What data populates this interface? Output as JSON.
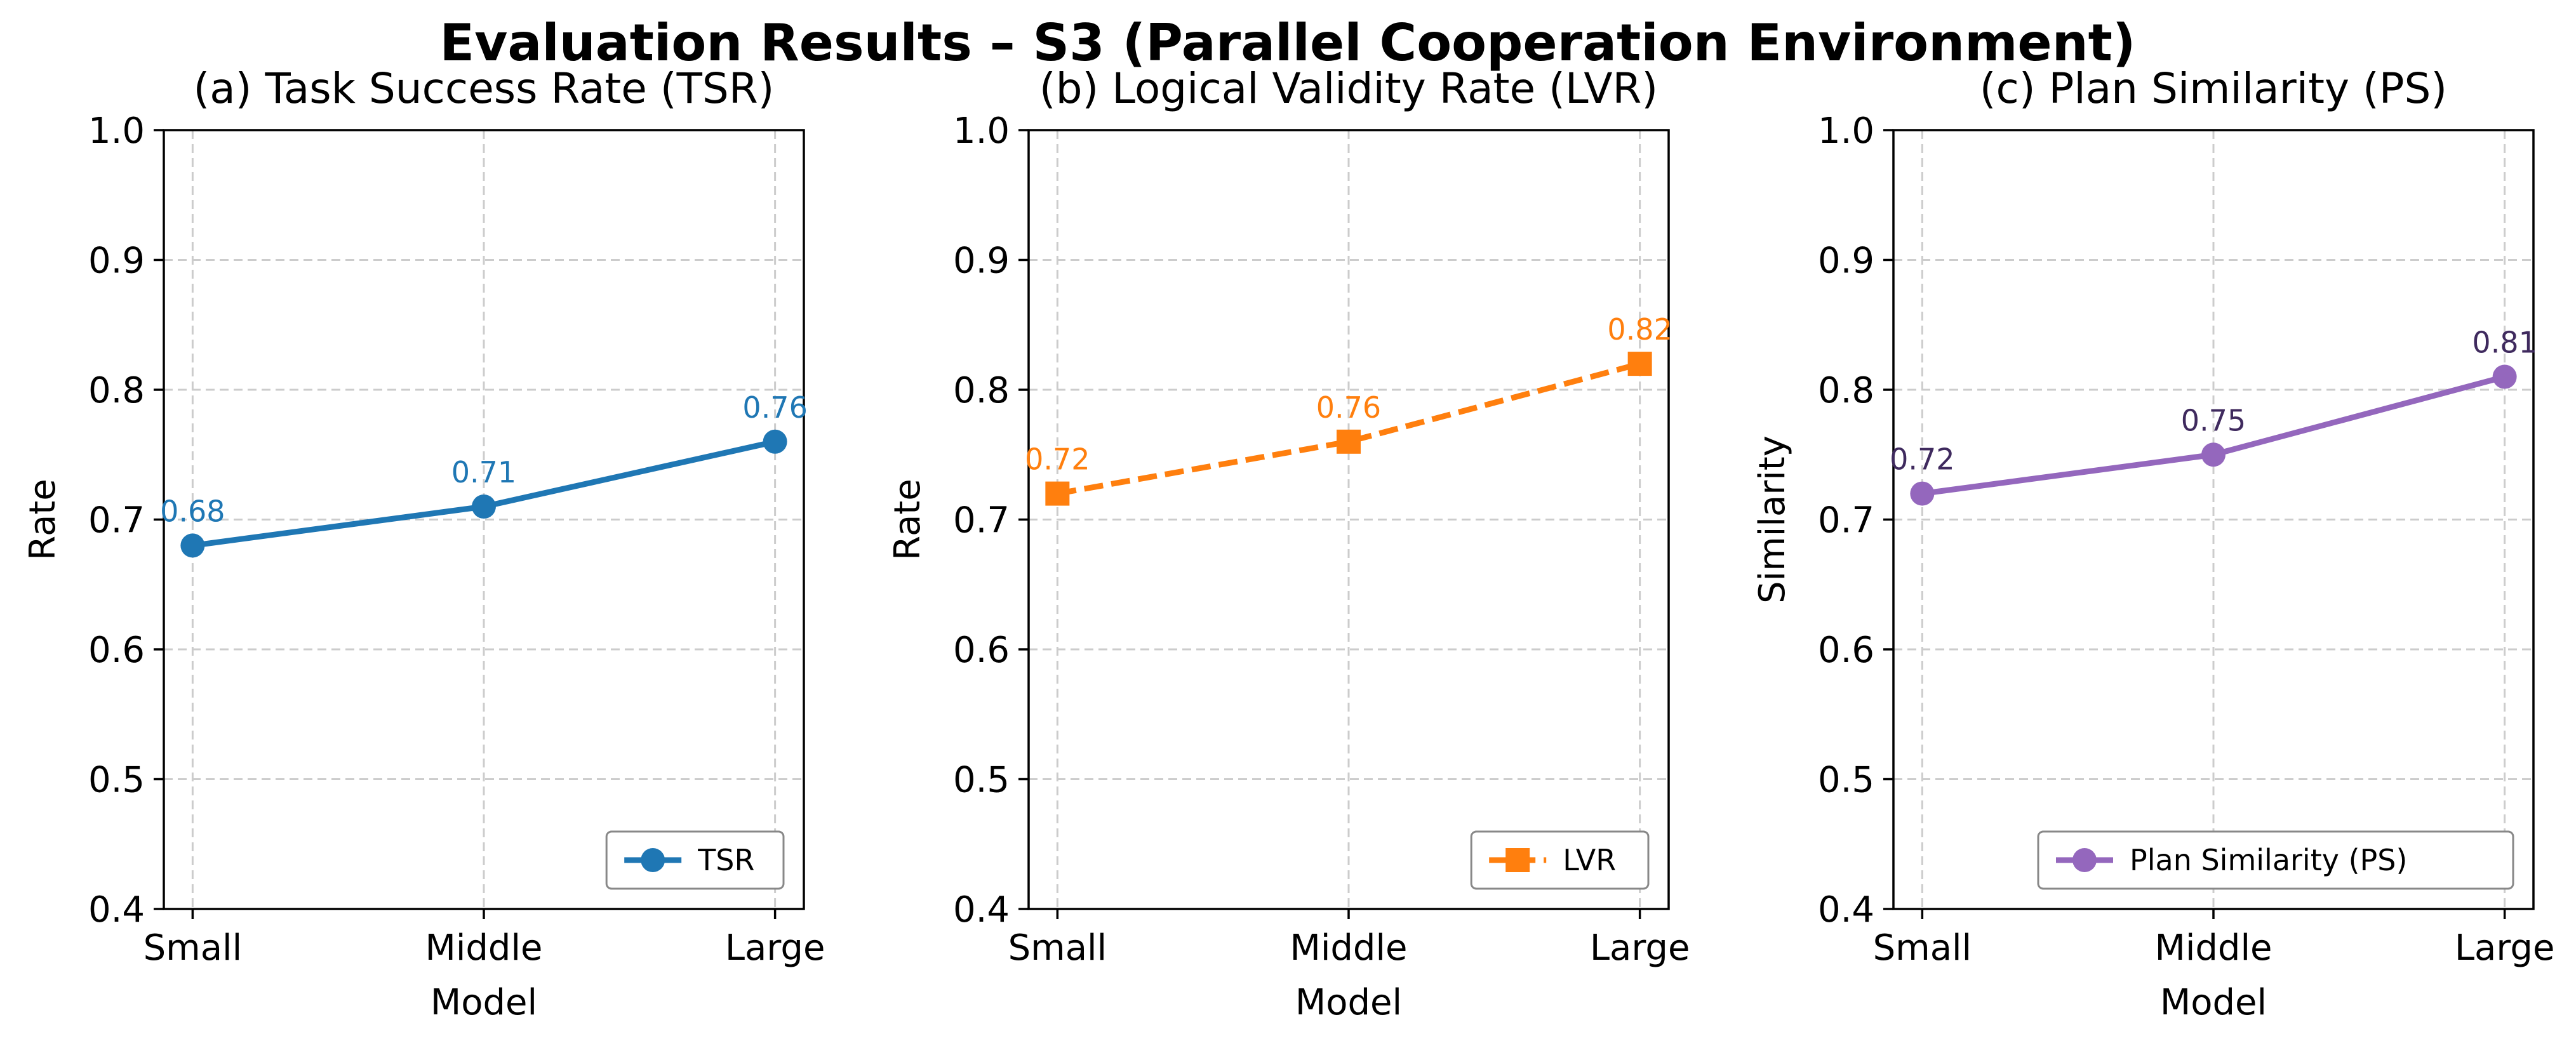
{
  "title": "Evaluation Results – S3 (Parallel Cooperation Environment)",
  "chart_data": [
    {
      "type": "line",
      "title": "(a) Task Success Rate (TSR)",
      "xlabel": "Model",
      "ylabel": "Rate",
      "categories": [
        "Small",
        "Middle",
        "Large"
      ],
      "ylim": [
        0.4,
        1.0
      ],
      "yticks": [
        "0.4",
        "0.5",
        "0.6",
        "0.7",
        "0.8",
        "0.9",
        "1.0"
      ],
      "grid": true,
      "legend_position": "lower-right",
      "series": [
        {
          "name": "TSR",
          "values": [
            0.68,
            0.71,
            0.76
          ],
          "labels": [
            "0.68",
            "0.71",
            "0.76"
          ],
          "color": "#1f77b4",
          "label_color": "#1f77b4",
          "marker": "circle",
          "linestyle": "solid"
        }
      ]
    },
    {
      "type": "line",
      "title": "(b) Logical Validity Rate (LVR)",
      "xlabel": "Model",
      "ylabel": "Rate",
      "categories": [
        "Small",
        "Middle",
        "Large"
      ],
      "ylim": [
        0.4,
        1.0
      ],
      "yticks": [
        "0.4",
        "0.5",
        "0.6",
        "0.7",
        "0.8",
        "0.9",
        "1.0"
      ],
      "grid": true,
      "legend_position": "lower-right",
      "series": [
        {
          "name": "LVR",
          "values": [
            0.72,
            0.76,
            0.82
          ],
          "labels": [
            "0.72",
            "0.76",
            "0.82"
          ],
          "color": "#ff7f0e",
          "label_color": "#ff7f0e",
          "marker": "square",
          "linestyle": "dashed"
        }
      ]
    },
    {
      "type": "line",
      "title": "(c) Plan Similarity (PS)",
      "xlabel": "Model",
      "ylabel": "Similarity",
      "categories": [
        "Small",
        "Middle",
        "Large"
      ],
      "ylim": [
        0.4,
        1.0
      ],
      "yticks": [
        "0.4",
        "0.5",
        "0.6",
        "0.7",
        "0.8",
        "0.9",
        "1.0"
      ],
      "grid": true,
      "legend_position": "lower-right",
      "series": [
        {
          "name": "Plan Similarity (PS)",
          "values": [
            0.72,
            0.75,
            0.81
          ],
          "labels": [
            "0.72",
            "0.75",
            "0.81"
          ],
          "color": "#9467bd",
          "label_color": "#3f2a5e",
          "marker": "circle",
          "linestyle": "solid"
        }
      ]
    }
  ]
}
